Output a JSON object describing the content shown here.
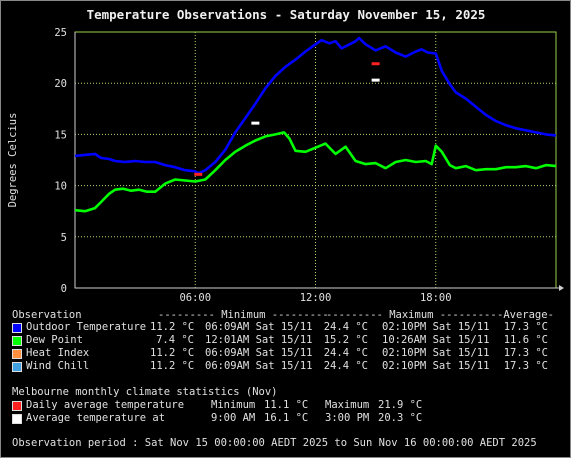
{
  "chart_data": {
    "type": "line",
    "title": "Temperature Observations - Saturday November 15, 2025",
    "xlabel": "",
    "ylabel": "Degrees Celcius",
    "x_ticks": [
      "06:00",
      "12:00",
      "18:00"
    ],
    "y_ticks": [
      0,
      5,
      10,
      15,
      20,
      25
    ],
    "xlim_hours": [
      0,
      24
    ],
    "ylim": [
      0,
      25
    ],
    "grid": true,
    "series": [
      {
        "name": "Outdoor Temperature",
        "color": "#0000ff",
        "x_hours": [
          0,
          0.5,
          1,
          1.3,
          1.7,
          2,
          2.5,
          3,
          3.5,
          4,
          4.5,
          5,
          5.5,
          6,
          6.15,
          6.5,
          7,
          7.5,
          8,
          8.5,
          9,
          9.5,
          10,
          10.5,
          11,
          11.5,
          12,
          12.3,
          12.7,
          13,
          13.3,
          13.7,
          14,
          14.17,
          14.5,
          15,
          15.5,
          16,
          16.5,
          17,
          17.3,
          17.6,
          18,
          18.3,
          18.7,
          19,
          19.5,
          20,
          20.5,
          21,
          21.5,
          22,
          22.5,
          23,
          23.5,
          24
        ],
        "values": [
          12.9,
          13.0,
          13.1,
          12.7,
          12.6,
          12.4,
          12.3,
          12.4,
          12.3,
          12.3,
          12.0,
          11.8,
          11.5,
          11.4,
          11.2,
          11.5,
          12.3,
          13.5,
          15.2,
          16.6,
          18.0,
          19.5,
          20.7,
          21.6,
          22.3,
          23.1,
          23.8,
          24.2,
          23.9,
          24.1,
          23.4,
          23.8,
          24.1,
          24.4,
          23.8,
          23.2,
          23.6,
          23.0,
          22.6,
          23.1,
          23.3,
          23.0,
          22.9,
          21.2,
          19.9,
          19.1,
          18.5,
          17.7,
          16.9,
          16.3,
          15.9,
          15.6,
          15.4,
          15.2,
          15.0,
          14.9
        ]
      },
      {
        "name": "Dew Point",
        "color": "#00ff00",
        "x_hours": [
          0,
          0.5,
          1,
          1.3,
          1.7,
          2,
          2.4,
          2.8,
          3.2,
          3.6,
          4,
          4.5,
          5,
          5.5,
          6,
          6.5,
          7,
          7.5,
          8,
          8.5,
          9,
          9.5,
          10,
          10.43,
          10.7,
          11,
          11.5,
          12,
          12.5,
          13,
          13.5,
          14,
          14.5,
          15,
          15.5,
          16,
          16.5,
          17,
          17.5,
          17.8,
          18,
          18.3,
          18.7,
          19,
          19.5,
          20,
          20.5,
          21,
          21.5,
          22,
          22.5,
          23,
          23.5,
          24
        ],
        "values": [
          7.6,
          7.5,
          7.8,
          8.4,
          9.2,
          9.6,
          9.7,
          9.5,
          9.6,
          9.4,
          9.4,
          10.2,
          10.6,
          10.5,
          10.4,
          10.6,
          11.5,
          12.5,
          13.3,
          13.9,
          14.4,
          14.8,
          15.0,
          15.2,
          14.6,
          13.4,
          13.3,
          13.7,
          14.1,
          13.1,
          13.8,
          12.4,
          12.1,
          12.2,
          11.7,
          12.3,
          12.5,
          12.3,
          12.4,
          12.1,
          13.9,
          13.3,
          12.0,
          11.7,
          11.9,
          11.5,
          11.6,
          11.6,
          11.8,
          11.8,
          11.9,
          11.7,
          12.0,
          11.9
        ]
      }
    ],
    "climate_markers": [
      {
        "name": "Daily average temperature",
        "color": "#ff2020",
        "hour": 15,
        "value": 21.9
      },
      {
        "name": "Daily average temperature",
        "color": "#ff2020",
        "hour": 6.15,
        "value": 11.1
      },
      {
        "name": "Average temperature at",
        "color": "#ffffff",
        "hour": 15,
        "value": 20.3
      },
      {
        "name": "Average temperature at",
        "color": "#ffffff",
        "hour": 9,
        "value": 16.1
      }
    ]
  },
  "legend": {
    "header": {
      "label": "Observation",
      "minimum": "--------- Minimum ---------",
      "maximum": "--------- Maximum ---------",
      "average": "-Average-"
    },
    "rows": [
      {
        "color": "#0000ff",
        "name": "Outdoor Temperature",
        "min_val": "11.2 °C",
        "min_time": "06:09AM Sat 15/11",
        "max_val": "24.4 °C",
        "max_time": "02:10PM Sat 15/11",
        "avg": "17.3 °C"
      },
      {
        "color": "#00ff00",
        "name": "Dew Point",
        "min_val": "7.4 °C",
        "min_time": "12:01AM Sat 15/11",
        "max_val": "15.2 °C",
        "max_time": "10:26AM Sat 15/11",
        "avg": "11.6 °C"
      },
      {
        "color": "#ff9040",
        "name": "Heat Index",
        "min_val": "11.2 °C",
        "min_time": "06:09AM Sat 15/11",
        "max_val": "24.4 °C",
        "max_time": "02:10PM Sat 15/11",
        "avg": "17.3 °C"
      },
      {
        "color": "#40a0e0",
        "name": "Wind Chill",
        "min_val": "11.2 °C",
        "min_time": "06:09AM Sat 15/11",
        "max_val": "24.4 °C",
        "max_time": "02:10PM Sat 15/11",
        "avg": "17.3 °C"
      }
    ]
  },
  "climate": {
    "title": "Melbourne monthly climate statistics (Nov)",
    "daily": {
      "color": "#ff2020",
      "label": "Daily average temperature",
      "min_label": "Minimum",
      "min_val": "11.1 °C",
      "max_label": "Maximum",
      "max_val": "21.9 °C"
    },
    "at": {
      "color": "#ffffff",
      "label": "Average temperature at",
      "t1": "9:00 AM",
      "v1": "16.1 °C",
      "t2": "3:00 PM",
      "v2": "20.3 °C"
    }
  },
  "footer": "Observation period : Sat Nov 15 00:00:00 AEDT 2025 to Sun Nov 16 00:00:00 AEDT 2025"
}
